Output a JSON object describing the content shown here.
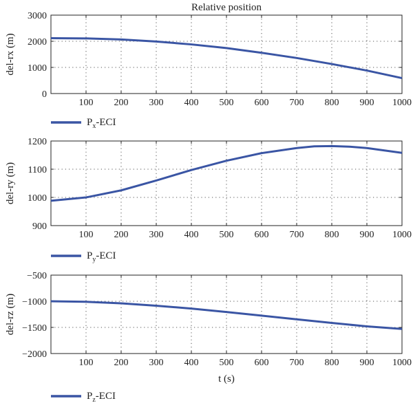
{
  "title": "Relative position",
  "xlabel": "t (s)",
  "line_color": "#3a55a4",
  "chart_data": [
    {
      "type": "line",
      "ylabel": "del-rx (m)",
      "legend": {
        "main": "P",
        "sub": "x",
        "suffix": "-ECI"
      },
      "xlim": [
        0,
        1000
      ],
      "ylim": [
        0,
        3000
      ],
      "xticks": [
        100,
        200,
        300,
        400,
        500,
        600,
        700,
        800,
        900,
        1000
      ],
      "yticks": [
        0,
        1000,
        2000,
        3000
      ],
      "grid": true,
      "series": [
        {
          "x": [
            0,
            100,
            200,
            300,
            400,
            500,
            600,
            700,
            800,
            900,
            1000
          ],
          "y": [
            2120,
            2110,
            2070,
            1990,
            1880,
            1740,
            1560,
            1360,
            1130,
            880,
            590
          ]
        }
      ]
    },
    {
      "type": "line",
      "ylabel": "del-ry (m)",
      "legend": {
        "main": "P",
        "sub": "y",
        "suffix": "-ECI"
      },
      "xlim": [
        0,
        1000
      ],
      "ylim": [
        900,
        1200
      ],
      "xticks": [
        100,
        200,
        300,
        400,
        500,
        600,
        700,
        800,
        900,
        1000
      ],
      "yticks": [
        900,
        1000,
        1100,
        1200
      ],
      "grid": true,
      "series": [
        {
          "x": [
            0,
            100,
            200,
            300,
            400,
            500,
            600,
            700,
            750,
            800,
            850,
            900,
            1000
          ],
          "y": [
            988,
            1000,
            1025,
            1060,
            1097,
            1130,
            1157,
            1175,
            1181,
            1182,
            1180,
            1175,
            1158
          ]
        }
      ]
    },
    {
      "type": "line",
      "ylabel": "del-rz (m)",
      "legend": {
        "main": "P",
        "sub": "z",
        "suffix": "-ECI"
      },
      "xlim": [
        0,
        1000
      ],
      "ylim": [
        -2000,
        -500
      ],
      "xticks": [
        100,
        200,
        300,
        400,
        500,
        600,
        700,
        800,
        900,
        1000
      ],
      "yticks": [
        -2000,
        -1500,
        -1000,
        -500
      ],
      "grid": true,
      "series": [
        {
          "x": [
            0,
            100,
            200,
            300,
            400,
            500,
            600,
            700,
            800,
            900,
            1000
          ],
          "y": [
            -1000,
            -1010,
            -1040,
            -1085,
            -1140,
            -1205,
            -1275,
            -1345,
            -1415,
            -1480,
            -1530
          ]
        }
      ]
    }
  ]
}
